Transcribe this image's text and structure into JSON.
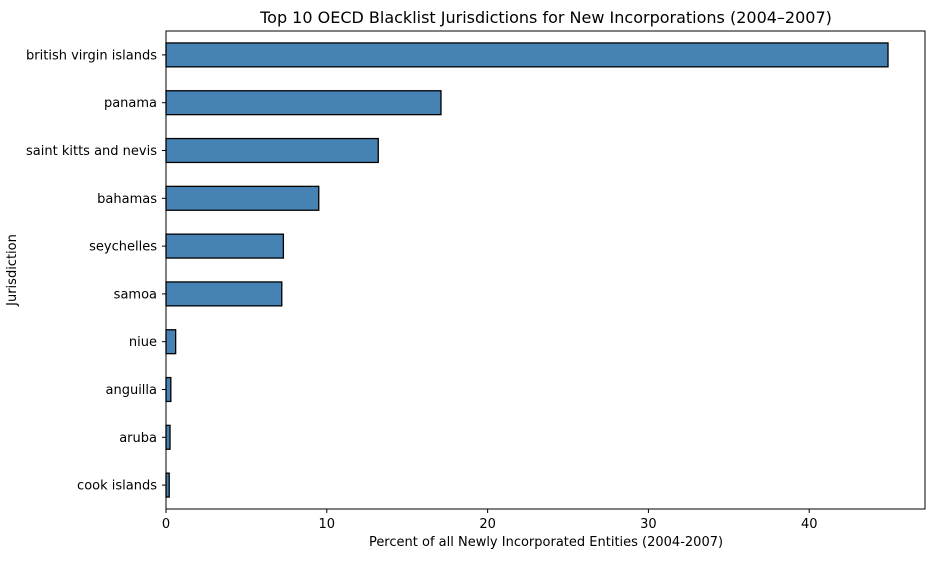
{
  "chart_data": {
    "type": "bar",
    "orientation": "horizontal",
    "title": "Top 10 OECD Blacklist Jurisdictions for New Incorporations (2004–2007)",
    "xlabel": "Percent of all Newly Incorporated Entities (2004-2007)",
    "ylabel": "Jurisdiction",
    "categories": [
      "british virgin islands",
      "panama",
      "saint kitts and nevis",
      "bahamas",
      "seychelles",
      "samoa",
      "niue",
      "anguilla",
      "aruba",
      "cook islands"
    ],
    "values": [
      44.9,
      17.1,
      13.2,
      9.5,
      7.3,
      7.2,
      0.6,
      0.3,
      0.25,
      0.2
    ],
    "xlim": [
      0,
      47.2
    ],
    "xticks": [
      0,
      10,
      20,
      30,
      40
    ],
    "xtick_labels": [
      "0",
      "10",
      "20",
      "30",
      "40"
    ],
    "grid": false,
    "legend": "none",
    "colors": {
      "bar_fill": "#4682b4",
      "bar_edge": "#000000",
      "axis": "#000000"
    }
  }
}
